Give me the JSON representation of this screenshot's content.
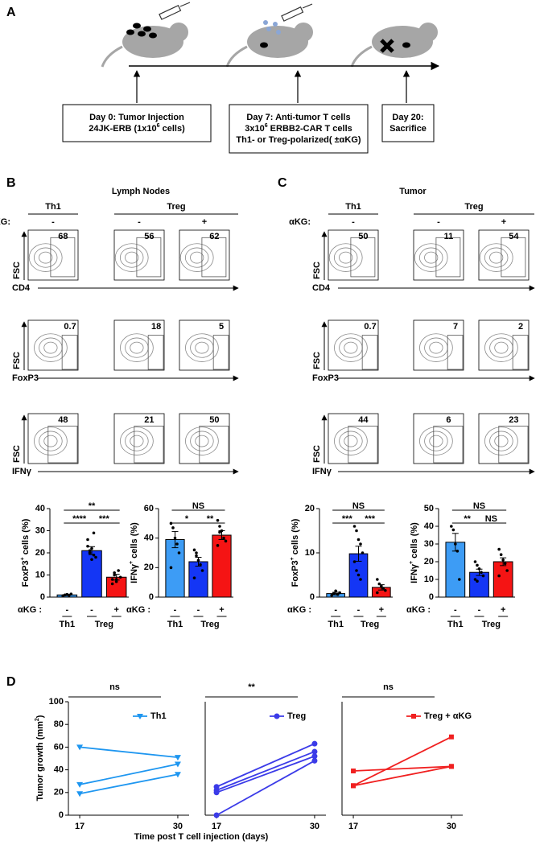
{
  "panel_a": {
    "letter": "A",
    "boxes": [
      {
        "lines": [
          [
            "Day 0: Tumor Injection"
          ],
          [
            "24JK-ERB  (1x10",
            "6",
            " cells)"
          ]
        ]
      },
      {
        "lines": [
          [
            "Day 7: Anti-tumor T cells"
          ],
          [
            "3x10",
            "6",
            " ERBB2-CAR T cells"
          ],
          [
            "Th1- or Treg-polarized( ±αKG)"
          ]
        ]
      },
      {
        "lines": [
          [
            "Day 20:"
          ],
          [
            "Sacrifice"
          ]
        ]
      }
    ]
  },
  "panel_b": {
    "letter": "B",
    "title": "Lymph Nodes",
    "groups": [
      "Th1",
      "Treg"
    ],
    "akg_label": "αKG:",
    "akg": [
      "-",
      "-",
      "+"
    ],
    "rows": [
      {
        "x_label": "CD4",
        "y_label": "FSC",
        "gates": [
          68,
          56,
          62
        ]
      },
      {
        "x_label": "FoxP3",
        "y_label": "FSC",
        "gates": [
          0.7,
          18,
          5
        ]
      },
      {
        "x_label": "IFNγ",
        "y_label": "FSC",
        "gates": [
          48,
          21,
          50
        ]
      }
    ]
  },
  "panel_c": {
    "letter": "C",
    "title": "Tumor",
    "groups": [
      "Th1",
      "Treg"
    ],
    "akg_label": "αKG:",
    "akg": [
      "-",
      "-",
      "+"
    ],
    "rows": [
      {
        "x_label": "CD4",
        "y_label": "FSC",
        "gates": [
          50,
          11,
          54
        ]
      },
      {
        "x_label": "FoxP3",
        "y_label": "FSC",
        "gates": [
          0.7,
          7,
          2
        ]
      },
      {
        "x_label": "IFNγ",
        "y_label": "FSC",
        "gates": [
          44,
          6,
          23
        ]
      }
    ]
  },
  "panel_d": {
    "letter": "D",
    "y_label": [
      "Tumor growth (mm",
      "2",
      ")"
    ],
    "x_label": "Time post T cell injection (days)"
  },
  "chart_data": [
    {
      "type": "bar",
      "y_label": [
        "FoxP3",
        "+",
        " cells (%)"
      ],
      "categories": [
        "-",
        "-",
        "+"
      ],
      "category_label": "αKG :",
      "groups": [
        {
          "label": "Th1",
          "span": [
            0,
            0
          ]
        },
        {
          "label": "Treg",
          "span": [
            1,
            2
          ]
        }
      ],
      "values": [
        1,
        21,
        9
      ],
      "errors": [
        0.3,
        1.8,
        1.3
      ],
      "points": [
        [
          0.5,
          1,
          1.2,
          0.8,
          1.4,
          0.6
        ],
        [
          26,
          21,
          22,
          19,
          18,
          23,
          20,
          17,
          29
        ],
        [
          8,
          10,
          7,
          12,
          9,
          6,
          11,
          8
        ]
      ],
      "colors": [
        "#3d9cf5",
        "#1436f5",
        "#f51414"
      ],
      "ylim": [
        0,
        40
      ],
      "yticks": [
        0,
        10,
        20,
        30,
        40
      ],
      "significance": [
        {
          "label": "**",
          "span": [
            0,
            2
          ]
        },
        {
          "label": "****",
          "span": [
            0,
            1
          ]
        },
        {
          "label": "***",
          "span": [
            1,
            2
          ]
        }
      ]
    },
    {
      "type": "bar",
      "y_label": [
        "IFNγ",
        "+",
        " cells (%)"
      ],
      "categories": [
        "-",
        "-",
        "+"
      ],
      "category_label": "αKG :",
      "groups": [
        {
          "label": "Th1",
          "span": [
            0,
            0
          ]
        },
        {
          "label": "Treg",
          "span": [
            1,
            2
          ]
        }
      ],
      "values": [
        39,
        24,
        42
      ],
      "errors": [
        5.5,
        3,
        3
      ],
      "points": [
        [
          50,
          47,
          40,
          36,
          30,
          20
        ],
        [
          32,
          28,
          25,
          22,
          18,
          13,
          30
        ],
        [
          52,
          48,
          45,
          40,
          38,
          35,
          44
        ]
      ],
      "colors": [
        "#3d9cf5",
        "#1436f5",
        "#f51414"
      ],
      "ylim": [
        0,
        60
      ],
      "yticks": [
        0,
        20,
        40,
        60
      ],
      "significance": [
        {
          "label": "NS",
          "span": [
            0,
            2
          ]
        },
        {
          "label": "*",
          "span": [
            0,
            1
          ]
        },
        {
          "label": "**",
          "span": [
            1,
            2
          ]
        }
      ]
    },
    {
      "type": "bar",
      "y_label": [
        "FoxP3",
        "+",
        " cells (%)"
      ],
      "categories": [
        "-",
        "-",
        "+"
      ],
      "category_label": "αKG :",
      "groups": [
        {
          "label": "Th1",
          "span": [
            0,
            0
          ]
        },
        {
          "label": "Treg",
          "span": [
            1,
            2
          ]
        }
      ],
      "values": [
        0.8,
        9.8,
        2.2
      ],
      "errors": [
        0.3,
        1.7,
        0.6
      ],
      "points": [
        [
          0.4,
          0.8,
          1.4,
          0.6,
          1
        ],
        [
          16,
          15,
          13,
          12,
          10,
          8,
          6,
          5,
          4
        ],
        [
          4,
          3,
          2.5,
          2,
          1.5,
          1
        ]
      ],
      "colors": [
        "#3d9cf5",
        "#1436f5",
        "#f51414"
      ],
      "ylim": [
        0,
        20
      ],
      "yticks": [
        0,
        10,
        20
      ],
      "significance": [
        {
          "label": "NS",
          "span": [
            0,
            2
          ]
        },
        {
          "label": "***",
          "span": [
            0,
            1
          ]
        },
        {
          "label": "***",
          "span": [
            1,
            2
          ]
        }
      ]
    },
    {
      "type": "bar",
      "y_label": [
        "IFNγ",
        "+",
        " cells (%)"
      ],
      "categories": [
        "-",
        "-",
        "+"
      ],
      "category_label": "αKG :",
      "groups": [
        {
          "label": "Th1",
          "span": [
            0,
            0
          ]
        },
        {
          "label": "Treg",
          "span": [
            1,
            2
          ]
        }
      ],
      "values": [
        31,
        14,
        20
      ],
      "errors": [
        5,
        1.8,
        2.2
      ],
      "points": [
        [
          40,
          38,
          30,
          26,
          10
        ],
        [
          20,
          18,
          16,
          14,
          12,
          10,
          9
        ],
        [
          27,
          24,
          21,
          19,
          15,
          12
        ]
      ],
      "colors": [
        "#3d9cf5",
        "#1436f5",
        "#f51414"
      ],
      "ylim": [
        0,
        50
      ],
      "yticks": [
        0,
        10,
        20,
        30,
        40,
        50
      ],
      "significance": [
        {
          "label": "NS",
          "span": [
            0,
            2
          ]
        },
        {
          "label": "**",
          "span": [
            0,
            1
          ]
        },
        {
          "label": "NS",
          "span": [
            1,
            2
          ]
        }
      ]
    },
    {
      "type": "line",
      "legend": "Th1",
      "marker": "triangle-down",
      "color": "#1e96f0",
      "significance": "ns",
      "x": [
        17,
        30
      ],
      "xlim": [
        15.5,
        31.5
      ],
      "xticks": [
        17,
        30
      ],
      "ylim": [
        0,
        100
      ],
      "yticks": [
        0,
        20,
        40,
        60,
        80,
        100
      ],
      "series": [
        {
          "values": [
            60,
            51
          ]
        },
        {
          "values": [
            27,
            45
          ]
        },
        {
          "values": [
            19,
            36
          ]
        }
      ]
    },
    {
      "type": "line",
      "legend": "Treg",
      "marker": "circle",
      "color": "#3b3be8",
      "significance": "**",
      "x": [
        17,
        30
      ],
      "xlim": [
        15.5,
        31.5
      ],
      "xticks": [
        17,
        30
      ],
      "ylim": [
        0,
        100
      ],
      "series": [
        {
          "values": [
            25,
            63
          ]
        },
        {
          "values": [
            22,
            56
          ]
        },
        {
          "values": [
            20,
            52
          ]
        },
        {
          "values": [
            0,
            48
          ]
        }
      ]
    },
    {
      "type": "line",
      "legend": "Treg + αKG",
      "marker": "square",
      "color": "#f02020",
      "significance": "ns",
      "x": [
        17,
        30
      ],
      "xlim": [
        15.5,
        31.5
      ],
      "xticks": [
        17,
        30
      ],
      "ylim": [
        0,
        100
      ],
      "series": [
        {
          "values": [
            39,
            43
          ]
        },
        {
          "values": [
            26,
            43
          ]
        },
        {
          "values": [
            26,
            69
          ]
        }
      ]
    }
  ]
}
